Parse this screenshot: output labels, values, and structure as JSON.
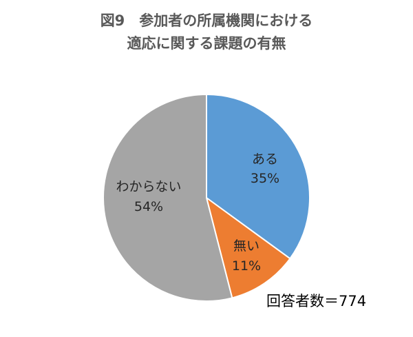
{
  "chart_data": {
    "type": "pie",
    "title_lines": [
      "図9　参加者の所属機関における",
      "適応に関する課題の有無"
    ],
    "slices": [
      {
        "label": "ある",
        "value": 35,
        "value_label": "35%",
        "color": "#5B9BD5"
      },
      {
        "label": "無い",
        "value": 11,
        "value_label": "11%",
        "color": "#ED7D31"
      },
      {
        "label": "わからない",
        "value": 54,
        "value_label": "54%",
        "color": "#A5A5A5"
      }
    ],
    "start": "12 o'clock, clockwise",
    "legend": "none",
    "annotation": "回答者数＝774"
  }
}
